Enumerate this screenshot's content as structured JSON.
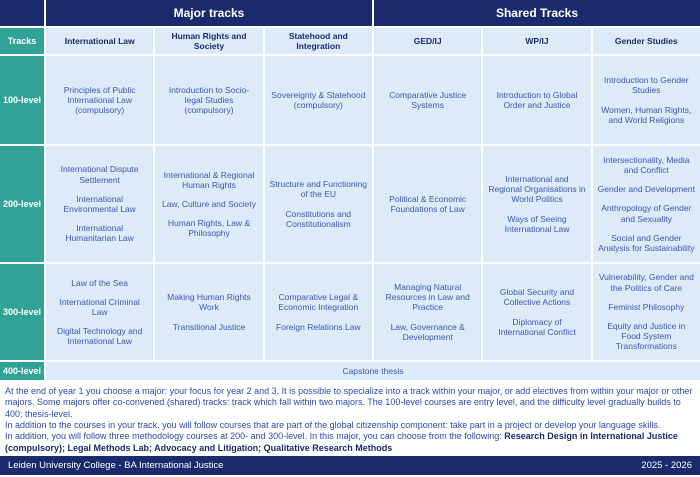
{
  "header": {
    "major_tracks": "Major tracks",
    "shared_tracks": "Shared Tracks",
    "tracks_label": "Tracks",
    "columns": [
      "International Law",
      "Human Rights and Society",
      "Statehood and Integration",
      "GED/IJ",
      "WP/IJ",
      "Gender Studies"
    ]
  },
  "rows": [
    {
      "level": "100-level",
      "cells": [
        [
          "Principles of Public International Law (compulsory)"
        ],
        [
          "Introduction to Socio-legal Studies (compulsory)"
        ],
        [
          "Sovereignty & Statehood (compulsory)"
        ],
        [
          "Comparative Justice Systems"
        ],
        [
          "Introduction to Global Order and Justice"
        ],
        [
          "Introduction to Gender Studies",
          "Women, Human Rights, and World Religions"
        ]
      ]
    },
    {
      "level": "200-level",
      "cells": [
        [
          "International Dispute Settlement",
          "International Environmental Law",
          "International Humanitarian Law"
        ],
        [
          "International & Regional Human Rights",
          "Law, Culture and Society",
          "Human Rights, Law & Philosophy"
        ],
        [
          "Structure and Functioning of the EU",
          "Constitutions and Constitutionalism"
        ],
        [
          "Political & Economic Foundations of Law"
        ],
        [
          "International and Regional Organisations in World Politics",
          "Ways of Seeing International Law"
        ],
        [
          "Intersectionality, Media and Conflict",
          "Gender and Development",
          "Anthropology of Gender and Sexuality",
          "Social and Gender Analysis for Sustainability"
        ]
      ]
    },
    {
      "level": "300-level",
      "cells": [
        [
          "Law of the Sea",
          "International Criminal Law",
          "Digital Technology and International Law"
        ],
        [
          "Making Human Rights Work",
          "Transitional Justice"
        ],
        [
          "Comparative Legal & Economic Integration",
          "Foreign Relations Law"
        ],
        [
          "Managing Natural Resources in Law and Practice",
          "Law, Governance & Development"
        ],
        [
          "Global Security and Collective Actions",
          "Diplomacy of International Conflict"
        ],
        [
          "Vulnerability, Gender and the Politics  of Care",
          "Feminist Philosophy",
          "Equity and Justice in Food System Transformations"
        ]
      ]
    }
  ],
  "capstone": {
    "level": "400-level",
    "text": "Capstone thesis"
  },
  "notes": {
    "p1": "At the end of year 1 you choose a major: your focus for year 2 and 3. It is possible to specialize into a track within your major, or add electives from within your major or other majors. Some majors offer co-convened (shared) tracks: track which fall within two majors. The 100-level courses are entry level, and the difficulty level gradually builds to 400; thesis-level.",
    "p2": "In addition to the courses in your track, you will follow courses that are part of the global citizenship component: take part in a project or develop your language skills.",
    "p3_plain": "In addition, you will follow three methodology courses at 200- and 300-level. In this major, you can choose from the following: ",
    "p3_bold": "Research Design in International Justice (compulsory); Legal Methods Lab; Advocacy and Litigation; Qualitative Research Methods"
  },
  "bottombar": {
    "left": "Leiden University College - BA International Justice",
    "right": "2025 - 2026"
  }
}
